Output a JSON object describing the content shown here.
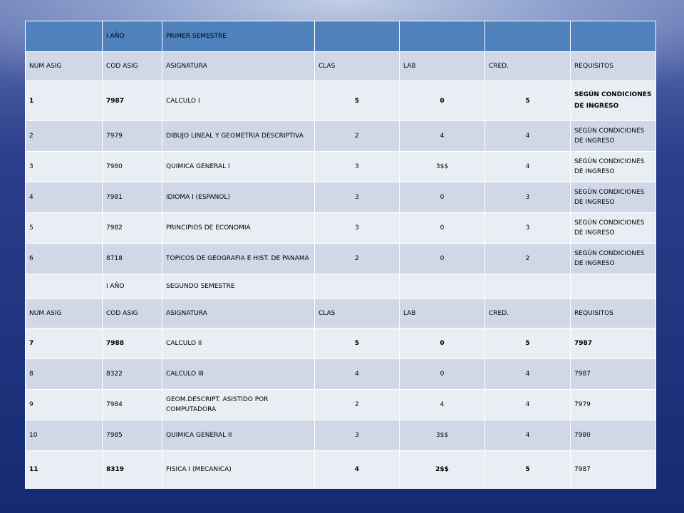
{
  "first_semester": {
    "year_label": "I AÑO",
    "semester_label": "PRIMER  SEMESTRE",
    "columns": [
      "NUM ASIG",
      "COD ASIG",
      "ASIGNATURA",
      "CLAS",
      "LAB",
      "CRED.",
      "REQUISITOS"
    ],
    "rows": [
      {
        "num": "1",
        "code": "7987",
        "subject": "CALCULO I",
        "clas": "5",
        "lab": "0",
        "cred": "5",
        "req": "SEGÚN CONDICIONES DE INGRESO"
      },
      {
        "num": "2",
        "code": "7979",
        "subject": "DIBUJO LINEAL Y GEOMETRIA DESCRIPTIVA",
        "clas": "2",
        "lab": "4",
        "cred": "4",
        "req": "SEGÚN CONDICIONES DE INGRESO"
      },
      {
        "num": "3",
        "code": "7980",
        "subject": "QUIMICA GENERAL I",
        "clas": "3",
        "lab": "3$$",
        "cred": "4",
        "req": "SEGÚN CONDICIONES DE INGRESO"
      },
      {
        "num": "4",
        "code": "7981",
        "subject": "IDIOMA I (ESPANOL)",
        "clas": "3",
        "lab": "0",
        "cred": "3",
        "req": "SEGÚN CONDICIONES DE INGRESO"
      },
      {
        "num": "5",
        "code": "7982",
        "subject": "PRINCIPIOS DE ECONOMIA",
        "clas": "3",
        "lab": "0",
        "cred": "3",
        "req": "SEGÚN CONDICIONES DE INGRESO"
      },
      {
        "num": "6",
        "code": "8718",
        "subject": "TOPICOS DE GEOGRAFIA E HIST. DE PANAMA",
        "clas": "2",
        "lab": "0",
        "cred": "2",
        "req": "SEGÚN CONDICIONES DE INGRESO"
      }
    ]
  },
  "second_semester": {
    "year_label": "I AÑO",
    "semester_label": "SEGUNDO  SEMESTRE",
    "columns": [
      "NUM ASIG",
      "COD ASIG",
      "ASIGNATURA",
      "CLAS",
      "LAB",
      "CRED.",
      "REQUISITOS"
    ],
    "rows": [
      {
        "num": "7",
        "code": "7988",
        "subject": "CALCULO II",
        "clas": "5",
        "lab": "0",
        "cred": "5",
        "req": "7987"
      },
      {
        "num": "8",
        "code": "8322",
        "subject": "CALCULO III",
        "clas": "4",
        "lab": "0",
        "cred": "4",
        "req": "7987"
      },
      {
        "num": "9",
        "code": "7984",
        "subject": "GEOM.DESCRIPT. ASISTIDO POR COMPUTADORA",
        "clas": "2",
        "lab": "4",
        "cred": "4",
        "req": "7979"
      },
      {
        "num": "10",
        "code": "7985",
        "subject": "QUIMICA GENERAL II",
        "clas": "3",
        "lab": "3$$",
        "cred": "4",
        "req": "7980"
      },
      {
        "num": "11",
        "code": "8319",
        "subject": "FISICA I (MECANICA)",
        "clas": "4",
        "lab": "2$$",
        "cred": "5",
        "req": "7987"
      }
    ]
  },
  "colors": {
    "header_blue": "#4f81bd",
    "row_dark": "#d0d8e8",
    "row_light": "#e9edf4",
    "accent_purple": "#7030a0"
  }
}
